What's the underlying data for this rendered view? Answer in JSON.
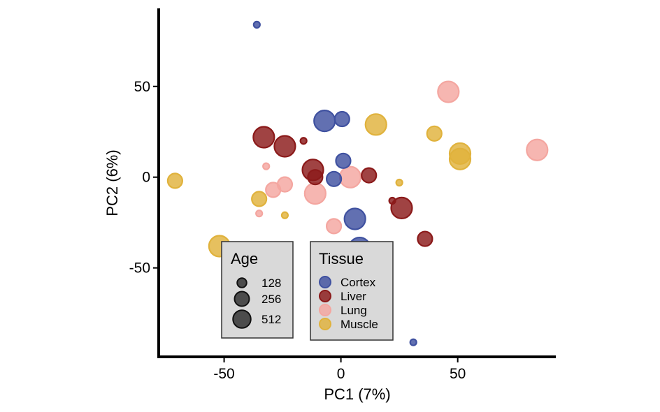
{
  "chart_data": {
    "type": "scatter",
    "xlabel": "PC1 (7%)",
    "ylabel": "PC2 (6%)",
    "xlim": [
      -78,
      92
    ],
    "ylim": [
      -99,
      93
    ],
    "x_ticks": [
      -50,
      0,
      50
    ],
    "y_ticks": [
      -50,
      0,
      50
    ],
    "grid": false,
    "colors": {
      "Cortex": "#3F51A0",
      "Liver": "#8B1A1A",
      "Lung": "#F4A6A0",
      "Muscle": "#E0B23C"
    },
    "points": [
      {
        "x": -36,
        "y": 84,
        "tissue": "Cortex",
        "age": 128
      },
      {
        "x": -7,
        "y": 31,
        "tissue": "Cortex",
        "age": 512
      },
      {
        "x": 0.5,
        "y": 32,
        "tissue": "Cortex",
        "age": 256
      },
      {
        "x": 1,
        "y": 9,
        "tissue": "Cortex",
        "age": 256
      },
      {
        "x": -3,
        "y": -1,
        "tissue": "Cortex",
        "age": 256
      },
      {
        "x": 6,
        "y": -23,
        "tissue": "Cortex",
        "age": 512
      },
      {
        "x": 8,
        "y": -39,
        "tissue": "Cortex",
        "age": 512
      },
      {
        "x": 31,
        "y": -91,
        "tissue": "Cortex",
        "age": 128
      },
      {
        "x": -33,
        "y": 22,
        "tissue": "Liver",
        "age": 512
      },
      {
        "x": -24,
        "y": 17,
        "tissue": "Liver",
        "age": 512
      },
      {
        "x": -16,
        "y": 20,
        "tissue": "Liver",
        "age": 128
      },
      {
        "x": -12,
        "y": 4,
        "tissue": "Liver",
        "age": 512
      },
      {
        "x": -11,
        "y": 0,
        "tissue": "Liver",
        "age": 256
      },
      {
        "x": 12,
        "y": 1,
        "tissue": "Liver",
        "age": 256
      },
      {
        "x": 22,
        "y": -13,
        "tissue": "Liver",
        "age": 128
      },
      {
        "x": 26,
        "y": -17,
        "tissue": "Liver",
        "age": 512
      },
      {
        "x": 36,
        "y": -34,
        "tissue": "Liver",
        "age": 256
      },
      {
        "x": 46,
        "y": 47,
        "tissue": "Lung",
        "age": 512
      },
      {
        "x": 84,
        "y": 15,
        "tissue": "Lung",
        "age": 512
      },
      {
        "x": -32,
        "y": 6,
        "tissue": "Lung",
        "age": 128
      },
      {
        "x": 4,
        "y": 0,
        "tissue": "Lung",
        "age": 512
      },
      {
        "x": -24,
        "y": -4,
        "tissue": "Lung",
        "age": 256
      },
      {
        "x": -29,
        "y": -7,
        "tissue": "Lung",
        "age": 256
      },
      {
        "x": -11,
        "y": -9,
        "tissue": "Lung",
        "age": 512
      },
      {
        "x": -35,
        "y": -20,
        "tissue": "Lung",
        "age": 128
      },
      {
        "x": -3,
        "y": -27,
        "tissue": "Lung",
        "age": 256
      },
      {
        "x": 15,
        "y": 29,
        "tissue": "Muscle",
        "age": 512
      },
      {
        "x": 40,
        "y": 24,
        "tissue": "Muscle",
        "age": 256
      },
      {
        "x": 51,
        "y": 13,
        "tissue": "Muscle",
        "age": 512
      },
      {
        "x": 51,
        "y": 10,
        "tissue": "Muscle",
        "age": 512
      },
      {
        "x": -71,
        "y": -2,
        "tissue": "Muscle",
        "age": 256
      },
      {
        "x": 25,
        "y": -3,
        "tissue": "Muscle",
        "age": 128
      },
      {
        "x": -35,
        "y": -12,
        "tissue": "Muscle",
        "age": 256
      },
      {
        "x": -24,
        "y": -21,
        "tissue": "Muscle",
        "age": 128
      },
      {
        "x": -52,
        "y": -38,
        "tissue": "Muscle",
        "age": 512
      }
    ],
    "legends": {
      "age": {
        "title": "Age",
        "entries": [
          "128",
          "256",
          "512"
        ]
      },
      "tissue": {
        "title": "Tissue",
        "entries": [
          "Cortex",
          "Liver",
          "Lung",
          "Muscle"
        ]
      }
    }
  }
}
